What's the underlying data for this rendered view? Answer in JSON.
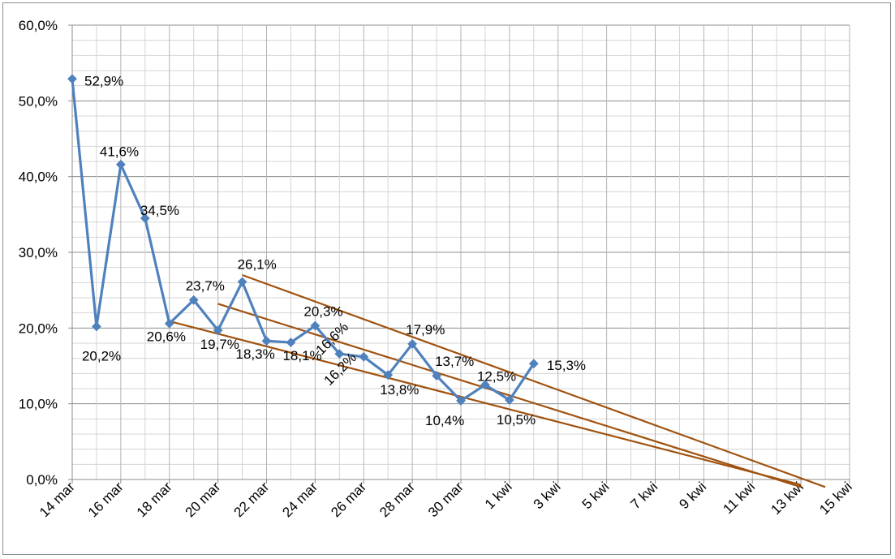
{
  "chart_data": {
    "type": "line",
    "x_tick_labels": [
      "14 mar",
      "16 mar",
      "18 mar",
      "20 mar",
      "22 mar",
      "24 mar",
      "26 mar",
      "28 mar",
      "30 mar",
      "1 kwi",
      "3 kwi",
      "5 kwi",
      "7 kwi",
      "9 kwi",
      "11 kwi",
      "13 kwi",
      "15 kwi"
    ],
    "y_tick_labels": [
      "0,0%",
      "10,0%",
      "20,0%",
      "30,0%",
      "40,0%",
      "50,0%",
      "60,0%"
    ],
    "ylim": [
      0,
      60
    ],
    "grid": true,
    "series": [
      {
        "color": "#4f81bd",
        "x": [
          "14 mar",
          "15 mar",
          "16 mar",
          "17 mar",
          "18 mar",
          "19 mar",
          "20 mar",
          "21 mar",
          "22 mar",
          "23 mar",
          "24 mar",
          "25 mar",
          "26 mar",
          "27 mar",
          "28 mar",
          "29 mar",
          "30 mar",
          "31 mar",
          "1 kwi",
          "2 kwi"
        ],
        "values": [
          52.9,
          20.2,
          41.6,
          34.5,
          20.6,
          23.7,
          19.7,
          26.1,
          18.3,
          18.1,
          20.3,
          16.6,
          16.2,
          13.8,
          17.9,
          13.7,
          10.4,
          12.5,
          10.5,
          15.3
        ],
        "labels": [
          "52,9%",
          "20,2%",
          "41,6%",
          "34,5%",
          "20,6%",
          "23,7%",
          "19,7%",
          "26,1%",
          "18,3%",
          "18,1%",
          "20,3%",
          "16,6%",
          "16,2%",
          "13,8%",
          "17,9%",
          "13,7%",
          "10,4%",
          "12,5%",
          "10,5%",
          "15,3%"
        ]
      }
    ],
    "trendlines": [
      {
        "color": "#a0520f",
        "from": {
          "x": "21 mar",
          "y": 27.0
        },
        "to": {
          "x": "14 kwi",
          "y": -1.0
        }
      },
      {
        "color": "#a0520f",
        "from": {
          "x": "20 mar",
          "y": 23.2
        },
        "to": {
          "x": "13 kwi",
          "y": -1.0
        }
      },
      {
        "color": "#a0520f",
        "from": {
          "x": "18 mar",
          "y": 20.9
        },
        "to": {
          "x": "13 kwi",
          "y": -0.7
        }
      }
    ]
  }
}
